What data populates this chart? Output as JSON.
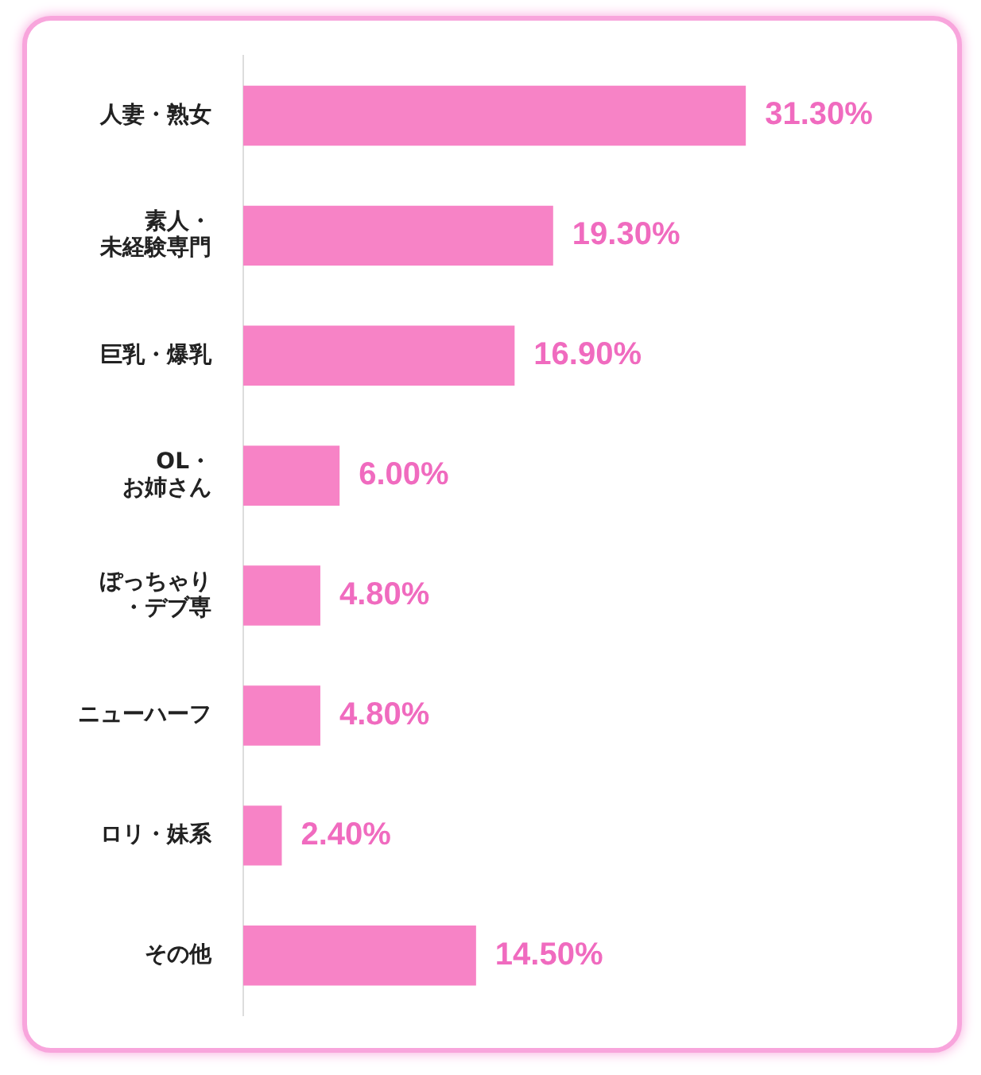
{
  "chart_data": {
    "type": "bar",
    "orientation": "horizontal",
    "categories": [
      "人妻・熟女",
      "素人・未経験専門",
      "巨乳・爆乳",
      "OL・お姉さん",
      "ぽっちゃり・デブ専",
      "ニューハーフ",
      "ロリ・妹系",
      "その他"
    ],
    "values": [
      31.3,
      19.3,
      16.9,
      6.0,
      4.8,
      4.8,
      2.4,
      14.5
    ],
    "value_labels": [
      "31.30%",
      "19.30%",
      "16.90%",
      "6.00%",
      "4.80%",
      "4.80%",
      "2.40%",
      "14.50%"
    ],
    "color": "#f783c6",
    "grid": false,
    "legend": false,
    "tick_labels": "y"
  }
}
